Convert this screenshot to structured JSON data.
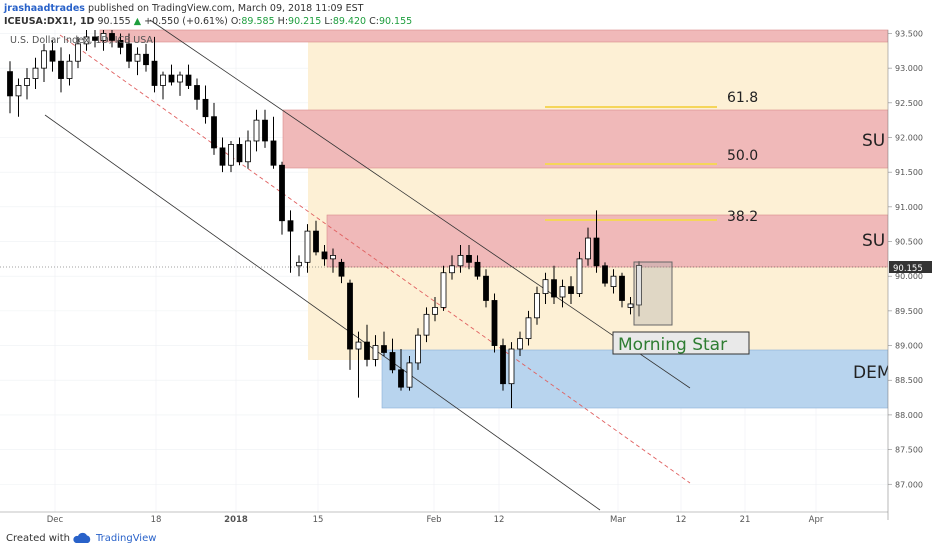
{
  "header": {
    "author": "jrashaadtrades",
    "publish_text": "published on TradingView.com, March 09, 2018 11:09 EST",
    "symbol": "ICEUSA:DX1!, 1D",
    "last": "90.155",
    "change": "+0.550 (+0.61%)",
    "o_label": "O:",
    "o_value": "89.585",
    "h_label": "H:",
    "h_value": "90.215",
    "l_label": "L:",
    "l_value": "89.420",
    "c_label": "C:",
    "c_value": "90.155",
    "legend": "U.S. Dollar Index, 1D, ICE USA"
  },
  "price_axis": {
    "ticks": [
      "93.500",
      "93.000",
      "92.500",
      "92.000",
      "91.500",
      "91.000",
      "90.500",
      "90.000",
      "89.500",
      "89.000",
      "88.500",
      "88.000",
      "87.500",
      "87.000"
    ],
    "current_price": "90.155"
  },
  "time_axis": {
    "ticks": [
      "Dec",
      "18",
      "2018",
      "15",
      "Feb",
      "12",
      "Mar",
      "12",
      "21",
      "Apr"
    ]
  },
  "zones": {
    "supply_label": "SU",
    "demand_label": "DEM"
  },
  "fib_levels": [
    "61.8",
    "50.0",
    "38.2"
  ],
  "pattern_label": "Morning Star",
  "footer": {
    "created_with": "Created with",
    "brand": "TradingView"
  },
  "colors": {
    "supply": "#f0b9b9",
    "demand": "#b8d4ee",
    "fib_fill": "#fdf0d5",
    "bull_candle": "#ffffff",
    "bear_candle": "#000000",
    "channel_mid": "#e06060",
    "fib_line": "#f5d55a"
  },
  "chart_data": {
    "type": "candlestick",
    "ylim": [
      86.6,
      93.55
    ],
    "candles": [
      {
        "o": 92.95,
        "h": 93.1,
        "l": 92.35,
        "c": 92.6
      },
      {
        "o": 92.6,
        "h": 92.85,
        "l": 92.3,
        "c": 92.75
      },
      {
        "o": 92.75,
        "h": 93.0,
        "l": 92.55,
        "c": 92.85
      },
      {
        "o": 92.85,
        "h": 93.15,
        "l": 92.7,
        "c": 93.0
      },
      {
        "o": 93.0,
        "h": 93.35,
        "l": 92.8,
        "c": 93.25
      },
      {
        "o": 93.25,
        "h": 93.4,
        "l": 92.95,
        "c": 93.1
      },
      {
        "o": 93.1,
        "h": 93.3,
        "l": 92.65,
        "c": 92.85
      },
      {
        "o": 92.85,
        "h": 93.2,
        "l": 92.75,
        "c": 93.1
      },
      {
        "o": 93.1,
        "h": 93.45,
        "l": 93.0,
        "c": 93.35
      },
      {
        "o": 93.35,
        "h": 93.55,
        "l": 93.25,
        "c": 93.45
      },
      {
        "o": 93.45,
        "h": 93.55,
        "l": 93.3,
        "c": 93.4
      },
      {
        "o": 93.4,
        "h": 93.55,
        "l": 93.25,
        "c": 93.5
      },
      {
        "o": 93.5,
        "h": 93.55,
        "l": 93.3,
        "c": 93.4
      },
      {
        "o": 93.4,
        "h": 93.5,
        "l": 93.2,
        "c": 93.3
      },
      {
        "o": 93.35,
        "h": 93.5,
        "l": 93.0,
        "c": 93.1
      },
      {
        "o": 93.1,
        "h": 93.3,
        "l": 92.9,
        "c": 93.2
      },
      {
        "o": 93.2,
        "h": 93.35,
        "l": 92.95,
        "c": 93.05
      },
      {
        "o": 93.1,
        "h": 93.45,
        "l": 92.65,
        "c": 92.75
      },
      {
        "o": 92.75,
        "h": 92.95,
        "l": 92.55,
        "c": 92.9
      },
      {
        "o": 92.9,
        "h": 93.05,
        "l": 92.75,
        "c": 92.8
      },
      {
        "o": 92.8,
        "h": 92.95,
        "l": 92.6,
        "c": 92.9
      },
      {
        "o": 92.9,
        "h": 93.05,
        "l": 92.7,
        "c": 92.75
      },
      {
        "o": 92.75,
        "h": 92.85,
        "l": 92.4,
        "c": 92.55
      },
      {
        "o": 92.55,
        "h": 92.75,
        "l": 92.2,
        "c": 92.3
      },
      {
        "o": 92.3,
        "h": 92.5,
        "l": 91.75,
        "c": 91.85
      },
      {
        "o": 91.85,
        "h": 92.0,
        "l": 91.5,
        "c": 91.6
      },
      {
        "o": 91.6,
        "h": 91.95,
        "l": 91.5,
        "c": 91.9
      },
      {
        "o": 91.9,
        "h": 92.0,
        "l": 91.6,
        "c": 91.65
      },
      {
        "o": 91.65,
        "h": 92.1,
        "l": 91.55,
        "c": 91.95
      },
      {
        "o": 91.95,
        "h": 92.4,
        "l": 91.8,
        "c": 92.25
      },
      {
        "o": 92.25,
        "h": 92.4,
        "l": 91.85,
        "c": 91.95
      },
      {
        "o": 91.95,
        "h": 92.3,
        "l": 91.55,
        "c": 91.6
      },
      {
        "o": 91.6,
        "h": 91.65,
        "l": 90.6,
        "c": 90.8
      },
      {
        "o": 90.8,
        "h": 90.95,
        "l": 90.05,
        "c": 90.65
      },
      {
        "o": 90.15,
        "h": 90.3,
        "l": 90.0,
        "c": 90.2
      },
      {
        "o": 90.2,
        "h": 90.75,
        "l": 90.05,
        "c": 90.65
      },
      {
        "o": 90.65,
        "h": 90.8,
        "l": 90.3,
        "c": 90.35
      },
      {
        "o": 90.35,
        "h": 90.45,
        "l": 90.15,
        "c": 90.25
      },
      {
        "o": 90.25,
        "h": 90.4,
        "l": 90.05,
        "c": 90.3
      },
      {
        "o": 90.2,
        "h": 90.25,
        "l": 89.9,
        "c": 90.0
      },
      {
        "o": 89.9,
        "h": 89.95,
        "l": 88.65,
        "c": 88.95
      },
      {
        "o": 88.95,
        "h": 89.2,
        "l": 88.25,
        "c": 89.05
      },
      {
        "o": 89.05,
        "h": 89.3,
        "l": 88.7,
        "c": 88.8
      },
      {
        "o": 88.8,
        "h": 89.15,
        "l": 88.7,
        "c": 89.0
      },
      {
        "o": 89.0,
        "h": 89.2,
        "l": 88.85,
        "c": 88.9
      },
      {
        "o": 88.9,
        "h": 89.1,
        "l": 88.6,
        "c": 88.65
      },
      {
        "o": 88.65,
        "h": 88.95,
        "l": 88.35,
        "c": 88.4
      },
      {
        "o": 88.4,
        "h": 88.85,
        "l": 88.35,
        "c": 88.75
      },
      {
        "o": 88.75,
        "h": 89.25,
        "l": 88.65,
        "c": 89.15
      },
      {
        "o": 89.15,
        "h": 89.55,
        "l": 89.05,
        "c": 89.45
      },
      {
        "o": 89.45,
        "h": 89.7,
        "l": 89.35,
        "c": 89.55
      },
      {
        "o": 89.55,
        "h": 90.15,
        "l": 89.5,
        "c": 90.05
      },
      {
        "o": 90.05,
        "h": 90.3,
        "l": 89.95,
        "c": 90.15
      },
      {
        "o": 90.15,
        "h": 90.45,
        "l": 90.05,
        "c": 90.3
      },
      {
        "o": 90.3,
        "h": 90.45,
        "l": 90.1,
        "c": 90.2
      },
      {
        "o": 90.2,
        "h": 90.3,
        "l": 89.95,
        "c": 90.0
      },
      {
        "o": 90.0,
        "h": 90.1,
        "l": 89.55,
        "c": 89.65
      },
      {
        "o": 89.65,
        "h": 89.75,
        "l": 88.9,
        "c": 89.0
      },
      {
        "o": 89.0,
        "h": 89.1,
        "l": 88.35,
        "c": 88.45
      },
      {
        "o": 88.45,
        "h": 89.05,
        "l": 88.1,
        "c": 88.95
      },
      {
        "o": 88.95,
        "h": 89.2,
        "l": 88.85,
        "c": 89.1
      },
      {
        "o": 89.1,
        "h": 89.5,
        "l": 89.0,
        "c": 89.4
      },
      {
        "o": 89.4,
        "h": 89.85,
        "l": 89.3,
        "c": 89.75
      },
      {
        "o": 89.75,
        "h": 90.05,
        "l": 89.6,
        "c": 89.95
      },
      {
        "o": 89.95,
        "h": 90.15,
        "l": 89.6,
        "c": 89.7
      },
      {
        "o": 89.7,
        "h": 89.95,
        "l": 89.55,
        "c": 89.85
      },
      {
        "o": 89.85,
        "h": 90.0,
        "l": 89.6,
        "c": 89.75
      },
      {
        "o": 89.75,
        "h": 90.35,
        "l": 89.7,
        "c": 90.25
      },
      {
        "o": 90.25,
        "h": 90.7,
        "l": 90.15,
        "c": 90.55
      },
      {
        "o": 90.55,
        "h": 90.95,
        "l": 90.05,
        "c": 90.15
      },
      {
        "o": 90.15,
        "h": 90.2,
        "l": 89.85,
        "c": 89.9
      },
      {
        "o": 89.85,
        "h": 90.1,
        "l": 89.75,
        "c": 90.0
      },
      {
        "o": 90.0,
        "h": 90.05,
        "l": 89.55,
        "c": 89.65
      },
      {
        "o": 89.55,
        "h": 89.7,
        "l": 89.45,
        "c": 89.6
      },
      {
        "o": 89.585,
        "h": 90.215,
        "l": 89.42,
        "c": 90.155
      }
    ]
  }
}
